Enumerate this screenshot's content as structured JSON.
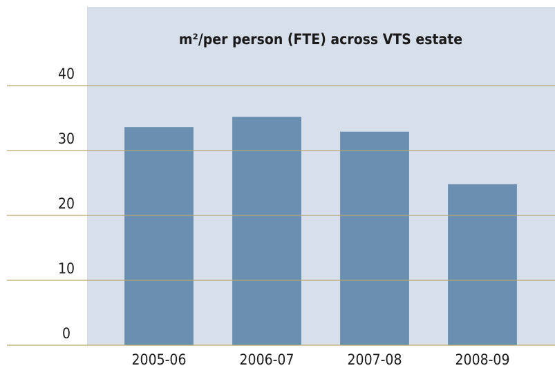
{
  "chart_data": {
    "type": "bar",
    "title": "m²/per person (FTE) across VTS estate",
    "categories": [
      "2005-06",
      "2006-07",
      "2007-08",
      "2008-09"
    ],
    "values": [
      33.6,
      35.2,
      32.9,
      24.8
    ],
    "color": "#6a8fb0",
    "ylim": [
      0,
      40
    ],
    "yticks": [
      0,
      10,
      20,
      30,
      40
    ],
    "grid": true
  }
}
